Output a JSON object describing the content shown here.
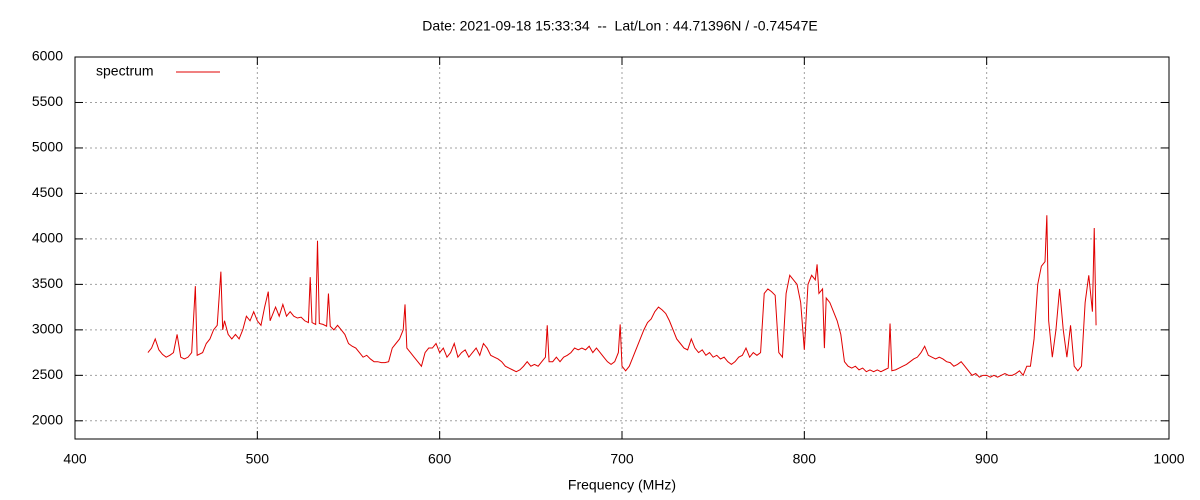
{
  "chart_data": {
    "type": "line",
    "title": "Date: 2021-09-18 15:33:34  --  Lat/Lon : 44.71396N / -0.74547E",
    "x_label": "Frequency (MHz)",
    "xlim": [
      400,
      1000
    ],
    "xticks": [
      400,
      500,
      600,
      700,
      800,
      900,
      1000
    ],
    "ylim": [
      1800,
      6000
    ],
    "yticks": [
      2000,
      2500,
      3000,
      3500,
      4000,
      4500,
      5000,
      5500,
      6000
    ],
    "grid": true,
    "legend": "top-left",
    "x": [
      440,
      442,
      444,
      446,
      448,
      450,
      452,
      454,
      456,
      458,
      460,
      462,
      464,
      466,
      467,
      470,
      472,
      474,
      476,
      478,
      480,
      481,
      482,
      484,
      486,
      488,
      490,
      492,
      494,
      496,
      498,
      500,
      502,
      504,
      506,
      507,
      510,
      512,
      514,
      516,
      518,
      520,
      522,
      524,
      526,
      528,
      529,
      530,
      532,
      533,
      534,
      536,
      538,
      539,
      540,
      542,
      544,
      546,
      548,
      550,
      552,
      554,
      556,
      558,
      560,
      562,
      564,
      566,
      568,
      570,
      572,
      574,
      576,
      578,
      580,
      581,
      582,
      584,
      586,
      588,
      590,
      592,
      594,
      596,
      598,
      600,
      602,
      604,
      606,
      608,
      610,
      612,
      614,
      616,
      618,
      620,
      622,
      624,
      626,
      628,
      630,
      632,
      634,
      636,
      638,
      640,
      642,
      644,
      646,
      648,
      650,
      652,
      654,
      656,
      658,
      659,
      660,
      662,
      664,
      666,
      668,
      670,
      672,
      674,
      676,
      678,
      680,
      682,
      684,
      686,
      688,
      690,
      692,
      694,
      696,
      698,
      699,
      700,
      702,
      704,
      706,
      708,
      710,
      712,
      714,
      716,
      718,
      720,
      722,
      724,
      726,
      728,
      730,
      732,
      734,
      736,
      738,
      740,
      742,
      744,
      746,
      748,
      750,
      752,
      754,
      756,
      758,
      760,
      762,
      764,
      766,
      768,
      770,
      772,
      774,
      776,
      778,
      780,
      782,
      784,
      786,
      788,
      790,
      792,
      794,
      796,
      798,
      800,
      802,
      804,
      806,
      807,
      808,
      810,
      811,
      812,
      814,
      816,
      818,
      820,
      822,
      824,
      826,
      828,
      830,
      832,
      834,
      836,
      838,
      840,
      842,
      844,
      846,
      847,
      848,
      850,
      852,
      854,
      856,
      858,
      860,
      862,
      864,
      866,
      868,
      870,
      872,
      874,
      876,
      878,
      880,
      882,
      884,
      886,
      888,
      890,
      892,
      894,
      896,
      898,
      900,
      902,
      904,
      906,
      908,
      910,
      912,
      914,
      916,
      918,
      920,
      922,
      924,
      926,
      928,
      930,
      932,
      933,
      934,
      936,
      938,
      940,
      942,
      944,
      946,
      948,
      950,
      952,
      954,
      956,
      958,
      959,
      960
    ],
    "series": [
      {
        "name": "spectrum",
        "color": "#e00000",
        "values": [
          2750,
          2800,
          2900,
          2780,
          2730,
          2700,
          2720,
          2750,
          2950,
          2700,
          2680,
          2700,
          2750,
          3480,
          2720,
          2750,
          2850,
          2900,
          3000,
          3050,
          3640,
          3000,
          3100,
          2950,
          2900,
          2950,
          2900,
          3000,
          3150,
          3100,
          3200,
          3100,
          3050,
          3250,
          3420,
          3100,
          3250,
          3150,
          3280,
          3150,
          3200,
          3150,
          3130,
          3140,
          3100,
          3080,
          3580,
          3080,
          3060,
          3980,
          3070,
          3060,
          3040,
          3400,
          3040,
          3000,
          3050,
          3000,
          2950,
          2850,
          2820,
          2800,
          2750,
          2700,
          2720,
          2680,
          2650,
          2650,
          2640,
          2640,
          2650,
          2800,
          2850,
          2900,
          3000,
          3280,
          2800,
          2750,
          2700,
          2650,
          2600,
          2750,
          2800,
          2800,
          2850,
          2750,
          2800,
          2700,
          2750,
          2850,
          2700,
          2750,
          2780,
          2700,
          2750,
          2800,
          2720,
          2850,
          2800,
          2720,
          2700,
          2680,
          2650,
          2600,
          2580,
          2560,
          2540,
          2560,
          2600,
          2650,
          2600,
          2620,
          2600,
          2650,
          2700,
          3050,
          2650,
          2650,
          2700,
          2650,
          2700,
          2720,
          2750,
          2800,
          2780,
          2800,
          2780,
          2820,
          2750,
          2800,
          2750,
          2700,
          2650,
          2620,
          2650,
          2750,
          3060,
          2600,
          2550,
          2600,
          2700,
          2800,
          2900,
          3000,
          3080,
          3120,
          3200,
          3250,
          3220,
          3180,
          3100,
          3000,
          2900,
          2850,
          2800,
          2780,
          2900,
          2800,
          2750,
          2780,
          2720,
          2750,
          2700,
          2720,
          2680,
          2700,
          2650,
          2620,
          2650,
          2700,
          2720,
          2800,
          2700,
          2750,
          2720,
          2750,
          3400,
          3450,
          3420,
          3380,
          2750,
          2700,
          3400,
          3600,
          3550,
          3500,
          3300,
          2780,
          3500,
          3600,
          3550,
          3720,
          3400,
          3450,
          2800,
          3350,
          3300,
          3200,
          3100,
          2950,
          2650,
          2600,
          2580,
          2600,
          2560,
          2580,
          2540,
          2560,
          2540,
          2560,
          2540,
          2560,
          2580,
          3070,
          2550,
          2560,
          2580,
          2600,
          2620,
          2650,
          2680,
          2700,
          2750,
          2820,
          2720,
          2700,
          2680,
          2700,
          2680,
          2650,
          2640,
          2600,
          2620,
          2650,
          2600,
          2550,
          2500,
          2520,
          2480,
          2500,
          2500,
          2480,
          2500,
          2480,
          2500,
          2520,
          2500,
          2500,
          2520,
          2550,
          2500,
          2600,
          2600,
          2900,
          3500,
          3700,
          3750,
          4260,
          3100,
          2700,
          3000,
          3450,
          3000,
          2700,
          3050,
          2600,
          2550,
          2600,
          3300,
          3600,
          3200,
          4120,
          3050
        ]
      }
    ]
  }
}
